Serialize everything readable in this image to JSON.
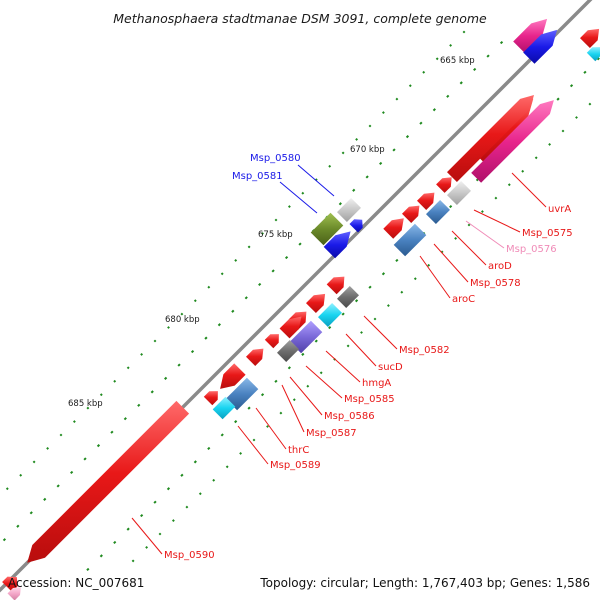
{
  "title": "Methanosphaera stadtmanae DSM 3091, complete genome",
  "footer": {
    "accession": "Accession: NC_007681",
    "summary": "Topology: circular; Length: 1,767,403 bp; Genes: 1,586"
  },
  "kbp_markers": [
    "665 kbp",
    "670 kbp",
    "675 kbp",
    "680 kbp",
    "685 kbp"
  ],
  "genes": [
    {
      "name": "Msp_0575",
      "color": "#e81818",
      "label_color": "#e81818"
    },
    {
      "name": "uvrA",
      "color": "#e81818",
      "label_color": "#e81818"
    },
    {
      "name": "Msp_0576",
      "color": "#f4a6c8",
      "label_color": "#f08cb8"
    },
    {
      "name": "aroD",
      "color": "#e81818",
      "label_color": "#e81818"
    },
    {
      "name": "Msp_0578",
      "color": "#e81818",
      "label_color": "#e81818"
    },
    {
      "name": "aroC",
      "color": "#e81818",
      "label_color": "#e81818"
    },
    {
      "name": "Msp_0580",
      "color": "#1a1ae8",
      "label_color": "#1a1ae8"
    },
    {
      "name": "Msp_0581",
      "color": "#1a1ae8",
      "label_color": "#1a1ae8"
    },
    {
      "name": "Msp_0582",
      "color": "#e81818",
      "label_color": "#e81818"
    },
    {
      "name": "sucD",
      "color": "#e81818",
      "label_color": "#e81818"
    },
    {
      "name": "hmgA",
      "color": "#e81818",
      "label_color": "#e81818"
    },
    {
      "name": "Msp_0585",
      "color": "#e81818",
      "label_color": "#e81818"
    },
    {
      "name": "Msp_0586",
      "color": "#e81818",
      "label_color": "#e81818"
    },
    {
      "name": "Msp_0587",
      "color": "#e81818",
      "label_color": "#e81818"
    },
    {
      "name": "thrC",
      "color": "#e81818",
      "label_color": "#e81818"
    },
    {
      "name": "Msp_0589",
      "color": "#e81818",
      "label_color": "#e81818"
    },
    {
      "name": "Msp_0590",
      "color": "#e81818",
      "label_color": "#e81818"
    }
  ],
  "colors": {
    "backbone": "#8a8a8a",
    "red": "#e81818",
    "magenta": "#e8258c",
    "pink": "#f4a6c8",
    "blue": "#1a1ae8",
    "cyan": "#19d4f0",
    "steelblue": "#4a82c0",
    "olive": "#6b8a2a",
    "gray": "#6e6e6e",
    "lightgray": "#c8c8c8",
    "purple": "#7a68d8",
    "tick": "#1f8a1f"
  }
}
